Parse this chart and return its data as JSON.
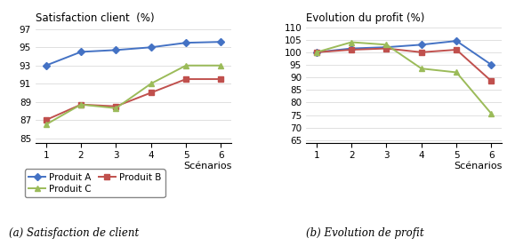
{
  "scenarios": [
    1,
    2,
    3,
    4,
    5,
    6
  ],
  "sat_A": [
    93,
    94.5,
    94.7,
    95,
    95.5,
    95.6
  ],
  "sat_B": [
    87,
    88.7,
    88.5,
    90,
    91.5,
    91.5
  ],
  "sat_C": [
    86.5,
    88.7,
    88.3,
    91,
    93,
    93
  ],
  "profit_A": [
    100,
    101.5,
    102,
    103,
    104.5,
    95
  ],
  "profit_B": [
    100,
    101,
    101.5,
    100,
    101,
    88.5
  ],
  "profit_C": [
    100,
    104,
    103,
    93.5,
    92,
    75.5
  ],
  "color_A": "#4472C4",
  "color_B": "#C0504D",
  "color_C": "#9BBB59",
  "sat_title": "Satisfaction client  (%)",
  "profit_title": "Evolution du profit (%)",
  "sat_ylabel_ticks": [
    85,
    87,
    89,
    91,
    93,
    95,
    97
  ],
  "sat_ylim": [
    84.5,
    97.5
  ],
  "profit_ylabel_ticks": [
    65,
    70,
    75,
    80,
    85,
    90,
    95,
    100,
    105,
    110
  ],
  "profit_ylim": [
    64,
    111
  ],
  "xlabel": "Scénarios",
  "legend_A": "Produit A",
  "legend_B": "Produit B",
  "legend_C": "Produit C",
  "caption_left": "(a) Satisfaction de client",
  "caption_right": "(b) Evolution de profit"
}
